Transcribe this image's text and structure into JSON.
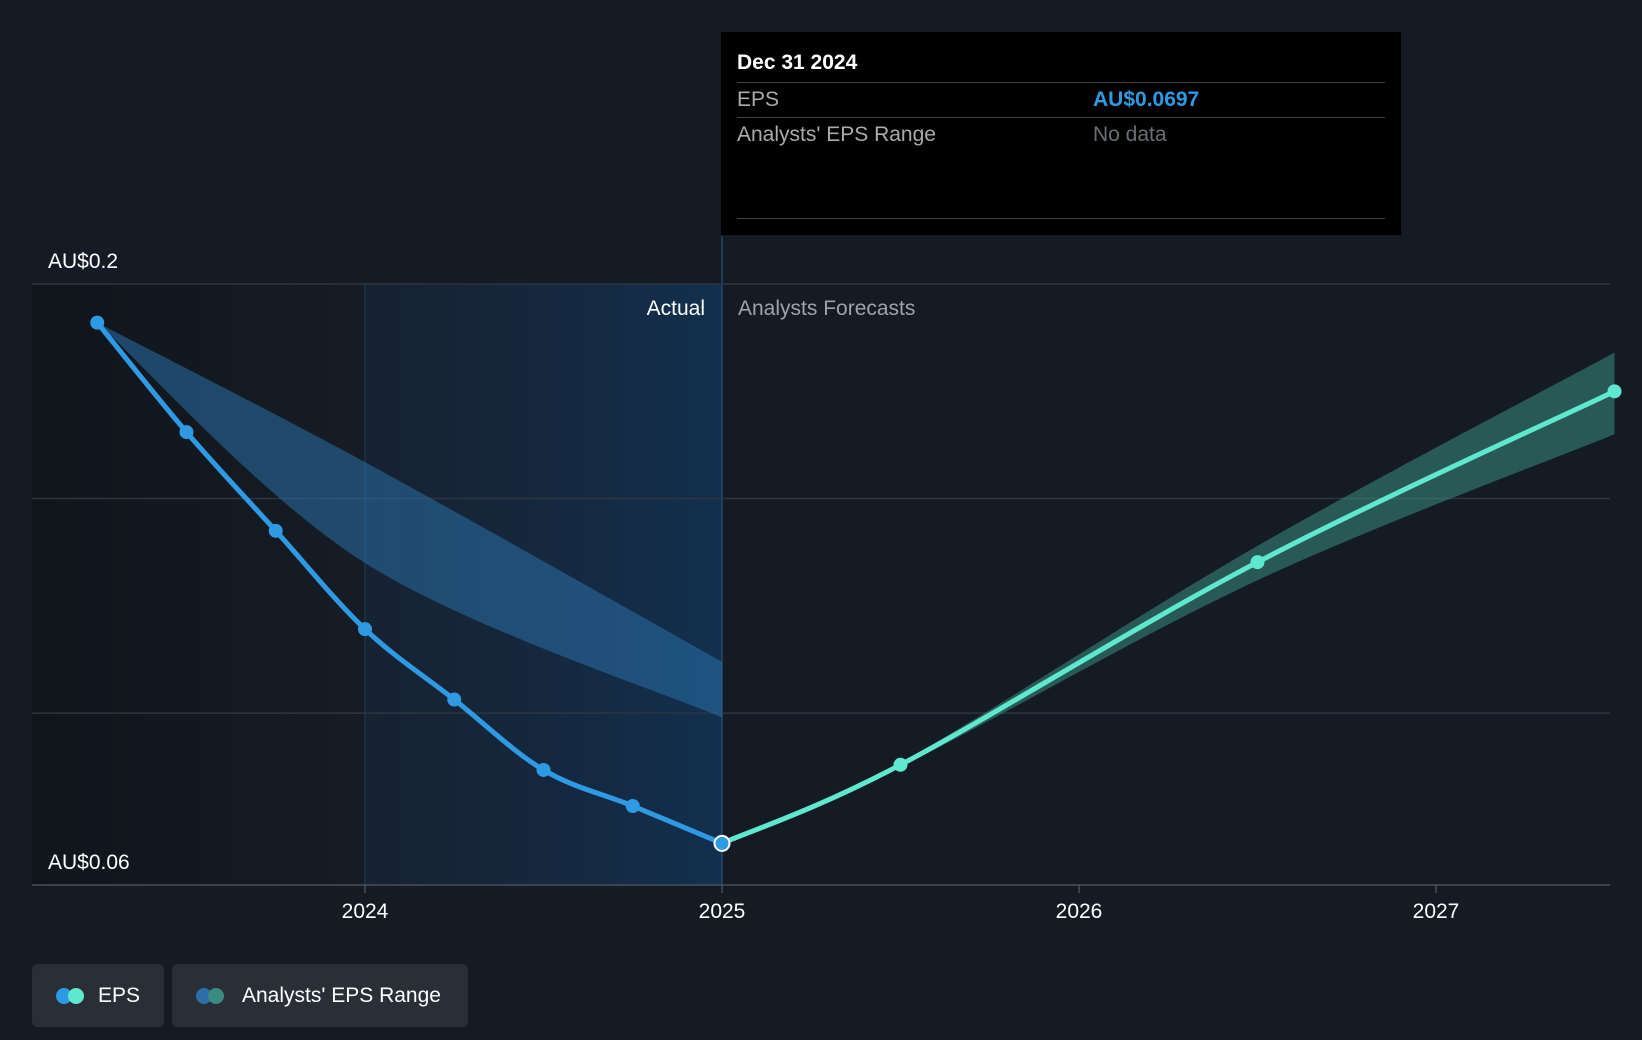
{
  "chart_data": {
    "type": "line",
    "title": "",
    "ylabel": "",
    "y_ticks": [
      "AU$0.2",
      "AU$0.06"
    ],
    "ylim": [
      0.06,
      0.2
    ],
    "xlim": [
      2023.17,
      2027.5
    ],
    "x_ticks": [
      "2024",
      "2025",
      "2026",
      "2027"
    ],
    "x_tick_values": [
      2024,
      2025,
      2026,
      2027
    ],
    "region_labels": {
      "actual": "Actual",
      "forecast": "Analysts Forecasts"
    },
    "divider_x": 2025,
    "series": [
      {
        "name": "EPS (Actual)",
        "color": "#2f9ae4",
        "points": [
          {
            "x": 2023.25,
            "y": 0.191
          },
          {
            "x": 2023.5,
            "y": 0.1655
          },
          {
            "x": 2023.75,
            "y": 0.1425
          },
          {
            "x": 2024.0,
            "y": 0.1196
          },
          {
            "x": 2024.25,
            "y": 0.1032
          },
          {
            "x": 2024.5,
            "y": 0.0868
          },
          {
            "x": 2024.75,
            "y": 0.0784
          },
          {
            "x": 2025.0,
            "y": 0.0697
          }
        ]
      },
      {
        "name": "EPS (Forecast)",
        "color": "#5ee8cf",
        "points": [
          {
            "x": 2025.0,
            "y": 0.0697
          },
          {
            "x": 2025.5,
            "y": 0.088
          },
          {
            "x": 2026.5,
            "y": 0.1352
          },
          {
            "x": 2027.5,
            "y": 0.175
          }
        ]
      }
    ],
    "ranges": [
      {
        "name": "Analysts' EPS Range (past)",
        "color": "#2a6fa8",
        "upper": [
          {
            "x": 2023.25,
            "y": 0.191
          },
          {
            "x": 2024.0,
            "y": 0.1585
          },
          {
            "x": 2025.0,
            "y": 0.112
          }
        ],
        "lower": [
          {
            "x": 2023.25,
            "y": 0.191
          },
          {
            "x": 2024.0,
            "y": 0.135
          },
          {
            "x": 2025.0,
            "y": 0.099
          }
        ]
      },
      {
        "name": "Analysts' EPS Range (forecast)",
        "color": "#3a8c80",
        "upper": [
          {
            "x": 2025.0,
            "y": 0.0697
          },
          {
            "x": 2025.5,
            "y": 0.0885
          },
          {
            "x": 2026.5,
            "y": 0.139
          },
          {
            "x": 2027.5,
            "y": 0.184
          }
        ],
        "lower": [
          {
            "x": 2025.0,
            "y": 0.0697
          },
          {
            "x": 2025.5,
            "y": 0.0875
          },
          {
            "x": 2026.5,
            "y": 0.131
          },
          {
            "x": 2027.5,
            "y": 0.165
          }
        ]
      }
    ],
    "highlight_point": {
      "x": 2025.0,
      "y": 0.0697
    }
  },
  "tooltip": {
    "date": "Dec 31 2024",
    "rows": [
      {
        "label": "EPS",
        "value": "AU$0.0697"
      },
      {
        "label": "Analysts' EPS Range",
        "value": "No data"
      }
    ]
  },
  "legend": {
    "eps_label": "EPS",
    "range_label": "Analysts' EPS Range",
    "eps_colors": [
      "#2f9ae4",
      "#5ee8cf"
    ],
    "range_colors": [
      "#2a6fa8",
      "#3a8c80"
    ]
  }
}
